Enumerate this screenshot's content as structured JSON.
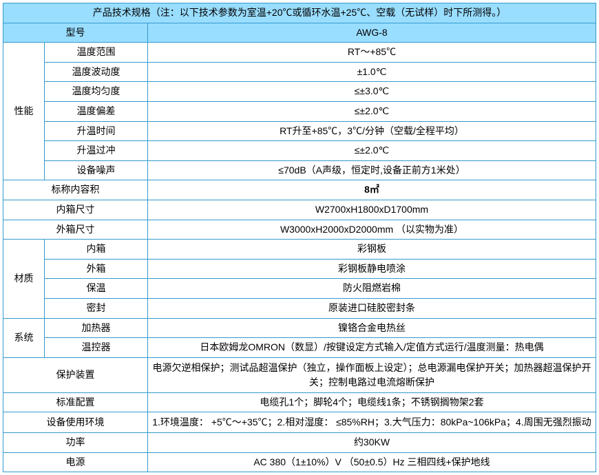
{
  "title": "产品技术规格（注：以下技术参数为室温+20℃或循环水温+25℃、空载（无试样）时下所测得。）",
  "header_left": "型号",
  "header_right": "AWG-8",
  "perf_label": "性能",
  "perf_rows": [
    {
      "k": "温度范围",
      "v": "RT～+85℃"
    },
    {
      "k": "温度波动度",
      "v": "±1.0℃"
    },
    {
      "k": "温度均匀度",
      "v": "≤±3.0℃"
    },
    {
      "k": "温度偏差",
      "v": "≤±2.0℃"
    },
    {
      "k": "升温时间",
      "v": "RT升至+85℃，3℃/分钟（空载/全程平均）"
    },
    {
      "k": "升温过冲",
      "v": "≤±2.0℃"
    },
    {
      "k": "设备噪声",
      "v": "≤70dB（A声级，恒定时,设备正前方1米处）"
    }
  ],
  "volume_k": "标称内容积",
  "volume_v": "8㎡",
  "inner_dim_k": "内箱尺寸",
  "inner_dim_v": "W2700xH1800xD1700mm",
  "outer_dim_k": "外箱尺寸",
  "outer_dim_v": "W3000xH2000xD2000mm （以实物为准）",
  "material_label": "材质",
  "material_rows": [
    {
      "k": "内箱",
      "v": "彩钢板"
    },
    {
      "k": "外箱",
      "v": "彩钢板静电喷涂"
    },
    {
      "k": "保温",
      "v": "防火阻燃岩棉"
    },
    {
      "k": "密封",
      "v": "原装进口硅胶密封条"
    }
  ],
  "system_label": "系统",
  "system_rows": [
    {
      "k": "加热器",
      "v": "镍铬合金电热丝"
    },
    {
      "k": "温控器",
      "v": "日本欧姆龙OMRON（数显）/按键设定方式输入/定值方式运行/温度测量：热电偶"
    }
  ],
  "protect_k": "保护装置",
  "protect_v": "电源欠逆相保护；测试品超温保护（独立，操作面板上设定）；总电源漏电保护开关；加热器超温保护开关；控制电路过电流熔断保护",
  "std_k": "标准配置",
  "std_v": "电缆孔1个；脚轮4个；电缆线1条；不锈钢搁物架2套",
  "env_k": "设备使用环境",
  "env_v": "1.环境温度： +5℃～+35℃；2.相对湿度： ≤85%RH；3.大气压力：80kPa~106kPa；4.周围无强烈振动",
  "power_k": "功率",
  "power_v": "约30KW",
  "supply_k": "电源",
  "supply_v": "AC 380（1±10%）V （50±0.5）Hz 三相四线+保护地线",
  "colors": {
    "border": "#3399cc",
    "header_bg": "#99ddff",
    "cell_bg": "#ffffff",
    "text": "#000000"
  },
  "font_size_pt": 14
}
